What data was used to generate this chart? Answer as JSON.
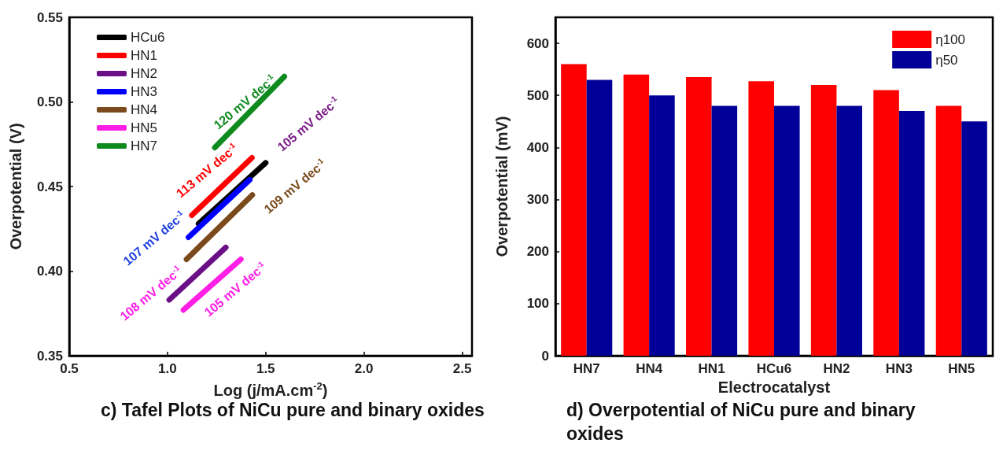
{
  "chart_data": [
    {
      "type": "line",
      "xlabel": "Log (j/mA.cm$^{-2}$)",
      "ylabel": "Overpotential (V)",
      "xlim": [
        0.5,
        2.55
      ],
      "ylim": [
        0.35,
        0.55
      ],
      "xticks": [
        {
          "value": 0.5,
          "label": "0.5"
        },
        {
          "value": 1.0,
          "label": "1.0"
        },
        {
          "value": 1.5,
          "label": "1.5"
        },
        {
          "value": 2.0,
          "label": "2.0"
        },
        {
          "value": 2.5,
          "label": "2.5"
        }
      ],
      "yticks": [
        {
          "value": 0.35,
          "label": "0.35"
        },
        {
          "value": 0.4,
          "label": "0.40"
        },
        {
          "value": 0.45,
          "label": "0.45"
        },
        {
          "value": 0.5,
          "label": "0.50"
        },
        {
          "value": 0.55,
          "label": "0.55"
        }
      ],
      "legend": "top left",
      "marker": "none",
      "line_style": "solid",
      "series": [
        {
          "name": "HCu6",
          "color": "#000000",
          "x": [
            1.158,
            1.5
          ],
          "values": [
            0.428,
            0.464
          ]
        },
        {
          "name": "HN1",
          "color": "#ff0000",
          "x": [
            1.124,
            1.43
          ],
          "values": [
            0.433,
            0.467
          ]
        },
        {
          "name": "HN2",
          "color": "#6a0f86",
          "x": [
            1.009,
            1.297
          ],
          "values": [
            0.383,
            0.414
          ]
        },
        {
          "name": "HN3",
          "color": "#0000ff",
          "x": [
            1.107,
            1.419
          ],
          "values": [
            0.42,
            0.454
          ]
        },
        {
          "name": "HN4",
          "color": "#7a4a1c",
          "x": [
            1.097,
            1.432
          ],
          "values": [
            0.407,
            0.445
          ]
        },
        {
          "name": "HN5",
          "color": "#ff1ee6",
          "x": [
            1.081,
            1.374
          ],
          "values": [
            0.377,
            0.407
          ]
        },
        {
          "name": "HN7",
          "color": "#0f8a1e",
          "x": [
            1.241,
            1.595
          ],
          "values": [
            0.473,
            0.515
          ]
        }
      ],
      "annotations": [
        "120 mV dec$^{-1}$",
        "105 mV dec$^{-1}$",
        "113 mV dec$^{-1}$",
        "109 mV dec$^{-1}$",
        "107 mV dec$^{-1}$",
        "108 mV dec$^{-1}$",
        "105 mV dec$^{-1}$",
        "c) Tafel Plots of NiCu pure and binary oxides"
      ]
    },
    {
      "type": "bar",
      "xlabel": "Electrocatalyst",
      "ylabel": "Overpotential (mV)",
      "categories": [
        "HN7",
        "HN4",
        "HN1",
        "HCu6",
        "HN2",
        "HN3",
        "HN5"
      ],
      "ylim": [
        0,
        650
      ],
      "yticks": [
        0,
        100,
        200,
        300,
        400,
        500,
        600
      ],
      "legend": "top right",
      "series": [
        {
          "name": "η100",
          "color": "#ff0000",
          "values": [
            560,
            540,
            535,
            527,
            520,
            510,
            480
          ]
        },
        {
          "name": "η50",
          "color": "#000099",
          "values": [
            530,
            500,
            480,
            480,
            480,
            470,
            450
          ]
        }
      ],
      "annotations": [
        "d) Overpotential of NiCu pure and binary oxides"
      ]
    }
  ]
}
